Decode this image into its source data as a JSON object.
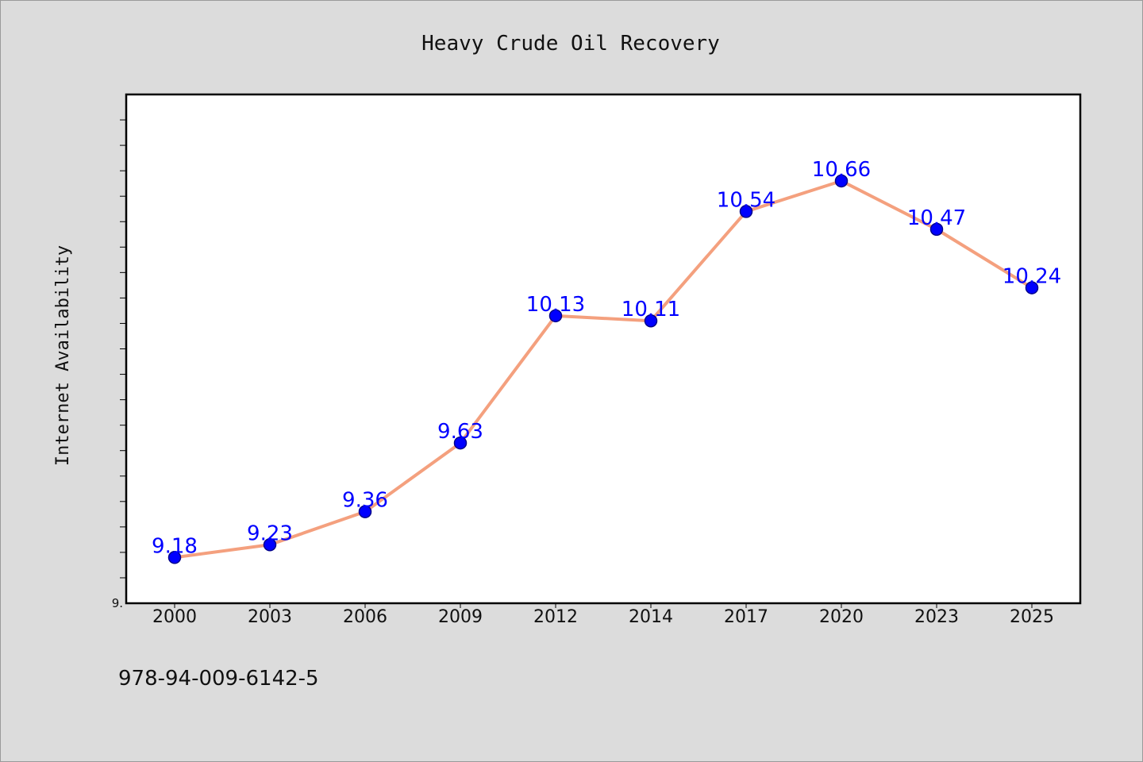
{
  "chart_data": {
    "type": "line",
    "title": "Heavy Crude Oil Recovery",
    "xlabel": "",
    "ylabel": "Internet Availability",
    "categories": [
      "2000",
      "2003",
      "2006",
      "2009",
      "2012",
      "2014",
      "2017",
      "2020",
      "2023",
      "2025"
    ],
    "series": [
      {
        "values": [
          9.18,
          9.23,
          9.36,
          9.63,
          10.13,
          10.11,
          10.54,
          10.66,
          10.47,
          10.24
        ],
        "data_labels": [
          "9.18",
          "9.23",
          "9.36",
          "9.63",
          "10.13",
          "10.11",
          "10.54",
          "10.66",
          "10.47",
          "10.24"
        ]
      }
    ],
    "ylim": [
      9.0,
      11.0
    ],
    "yticks_minor_step": 0.1,
    "ytick_labels": [
      {
        "value": 9.0,
        "label": "9."
      }
    ],
    "grid": false,
    "legend": "none",
    "colors": {
      "line": "#f4a07e",
      "marker": "#0000ff",
      "marker_edge": "#00008b",
      "data_label": "#0000ff",
      "plot_background": "#ffffff",
      "figure_background": "#dcdcdc"
    }
  },
  "footer_text": "978-94-009-6142-5"
}
